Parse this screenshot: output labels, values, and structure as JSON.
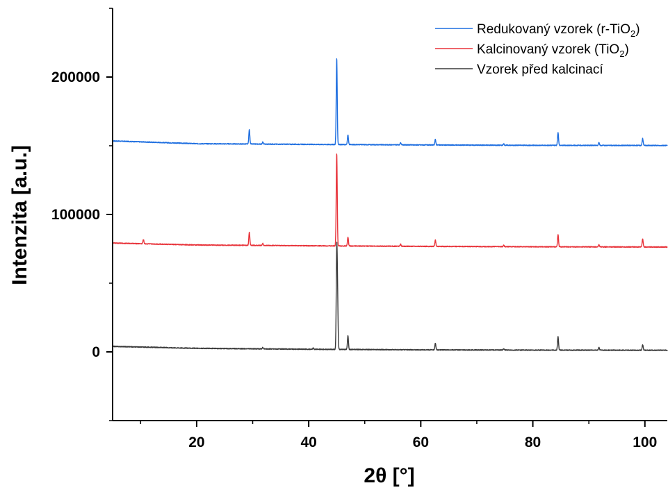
{
  "chart_data": {
    "type": "line",
    "xlabel": "2θ [°]",
    "ylabel": "Intenzita [a.u.]",
    "xlim": [
      5,
      104
    ],
    "ylim": [
      -50000,
      250000
    ],
    "x_ticks": [
      20,
      40,
      60,
      80,
      100
    ],
    "x_tick_labels": [
      "20",
      "40",
      "60",
      "80",
      "100"
    ],
    "y_ticks": [
      0,
      100000,
      200000
    ],
    "y_tick_labels": [
      "0",
      "100000",
      "200000"
    ],
    "grid": false,
    "legend": {
      "position": "top-right",
      "entries": [
        {
          "text": "Redukovaný vzorek (r-TiO",
          "sub": "2",
          "suffix": ")",
          "color": "#1f6fe0"
        },
        {
          "text": "Kalcinovaný vzorek (TiO",
          "sub": "2",
          "suffix": ")",
          "color": "#e8333a"
        },
        {
          "text": "Vzorek před kalcinací",
          "sub": "",
          "suffix": "",
          "color": "#3a3a3a"
        }
      ]
    },
    "series": [
      {
        "name": "Redukovaný vzorek (r-TiO2)",
        "color": "#1f6fe0",
        "baseline": [
          [
            5,
            153500
          ],
          [
            20,
            151500
          ],
          [
            40,
            151000
          ],
          [
            60,
            150600
          ],
          [
            80,
            150300
          ],
          [
            104,
            150200
          ]
        ],
        "peaks": [
          [
            29.4,
            10500
          ],
          [
            31.8,
            1500
          ],
          [
            45.0,
            62500
          ],
          [
            47.0,
            7000
          ],
          [
            56.4,
            1500
          ],
          [
            62.6,
            4000
          ],
          [
            74.8,
            1000
          ],
          [
            84.5,
            9500
          ],
          [
            91.8,
            2000
          ],
          [
            99.6,
            5000
          ]
        ]
      },
      {
        "name": "Kalcinovaný vzorek (TiO2)",
        "color": "#e8333a",
        "baseline": [
          [
            5,
            79200
          ],
          [
            20,
            77800
          ],
          [
            40,
            77200
          ],
          [
            60,
            76800
          ],
          [
            80,
            76500
          ],
          [
            104,
            76300
          ]
        ],
        "peaks": [
          [
            10.5,
            3000
          ],
          [
            29.4,
            9500
          ],
          [
            31.8,
            1500
          ],
          [
            45.0,
            67500
          ],
          [
            47.0,
            6500
          ],
          [
            56.4,
            1500
          ],
          [
            62.6,
            4500
          ],
          [
            74.8,
            1000
          ],
          [
            84.5,
            9000
          ],
          [
            91.8,
            1500
          ],
          [
            99.6,
            6000
          ]
        ]
      },
      {
        "name": "Vzorek před kalcinací",
        "color": "#3a3a3a",
        "baseline": [
          [
            5,
            4000
          ],
          [
            20,
            2600
          ],
          [
            40,
            1900
          ],
          [
            60,
            1500
          ],
          [
            80,
            1300
          ],
          [
            104,
            1200
          ]
        ],
        "peaks": [
          [
            31.8,
            1000
          ],
          [
            40.8,
            1000
          ],
          [
            45.0,
            68000
          ],
          [
            45.15,
            33000
          ],
          [
            47.0,
            10000
          ],
          [
            62.6,
            5000
          ],
          [
            74.8,
            800
          ],
          [
            84.5,
            10000
          ],
          [
            91.8,
            2000
          ],
          [
            99.6,
            4000
          ]
        ]
      }
    ]
  }
}
